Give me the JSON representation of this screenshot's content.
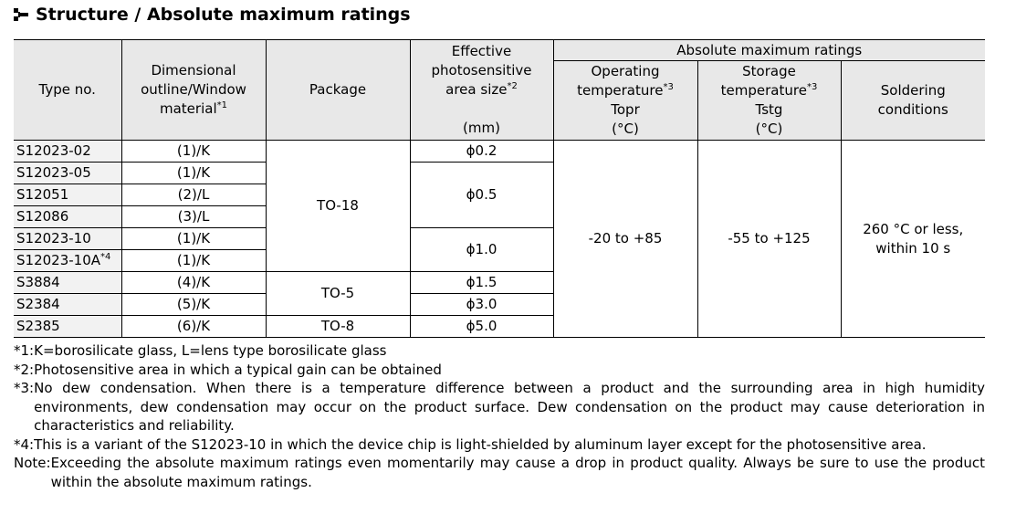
{
  "title": "Structure / Absolute maximum ratings",
  "headers": {
    "type_no": "Type no.",
    "dimensional": "Dimensional outline/Window material",
    "dimensional_note": "*1",
    "package": "Package",
    "effective": "Effective photosensitive area size",
    "effective_note": "*2",
    "effective_unit": "(mm)",
    "amr": "Absolute maximum ratings",
    "operating": "Operating temperature",
    "operating_note": "*3",
    "operating_sym": "Topr",
    "operating_unit": "(°C)",
    "storage": "Storage temperature",
    "storage_note": "*3",
    "storage_sym": "Tstg",
    "storage_unit": "(°C)",
    "soldering": "Soldering conditions"
  },
  "rows": [
    {
      "type": "S12023-02",
      "dim": "(1)/K"
    },
    {
      "type": "S12023-05",
      "dim": "(1)/K"
    },
    {
      "type": "S12051",
      "dim": "(2)/L"
    },
    {
      "type": "S12086",
      "dim": "(3)/L"
    },
    {
      "type": "S12023-10",
      "dim": "(1)/K"
    },
    {
      "type": "S12023-10A",
      "type_note": "*4",
      "dim": "(1)/K"
    },
    {
      "type": "S3884",
      "dim": "(4)/K"
    },
    {
      "type": "S2384",
      "dim": "(5)/K"
    },
    {
      "type": "S2385",
      "dim": "(6)/K"
    }
  ],
  "packages": [
    "TO-18",
    "TO-5",
    "TO-8"
  ],
  "areas": [
    "ϕ0.2",
    "ϕ0.5",
    "ϕ1.0",
    "ϕ1.5",
    "ϕ3.0",
    "ϕ5.0"
  ],
  "operating_value": "-20 to +85",
  "storage_value": "-55 to +125",
  "soldering_value": "260 °C or less, within 10 s",
  "notes": [
    {
      "k": "*1: ",
      "v": "K=borosilicate glass, L=lens type borosilicate glass"
    },
    {
      "k": "*2: ",
      "v": "Photosensitive area in which a typical gain can be obtained"
    },
    {
      "k": "*3: ",
      "v": "No dew condensation. When there is a temperature difference between a product and the surrounding area in high humidity environments, dew condensation may occur on the product surface. Dew condensation on the product may cause deterioration in characteristics and reliability."
    },
    {
      "k": "*4: ",
      "v": "This is a variant of the S12023-10 in which the device chip is light-shielded by aluminum layer except for the photosensitive area."
    },
    {
      "k": "Note: ",
      "v": "Exceeding the absolute maximum ratings even momentarily may cause a drop in product quality. Always be sure to use the product within the absolute maximum ratings."
    }
  ]
}
